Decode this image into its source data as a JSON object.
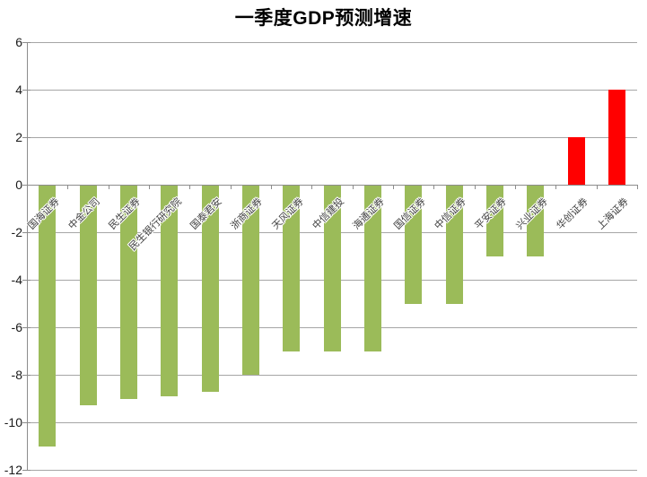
{
  "chart_data": {
    "type": "bar",
    "title": "一季度GDP预测增速",
    "categories": [
      "国海证券",
      "中金公司",
      "民生证券",
      "民生银行研究院",
      "国泰君安",
      "浙商证券",
      "天风证券",
      "中信建投",
      "海通证券",
      "国信证券",
      "中信证券",
      "平安证券",
      "兴业证券",
      "华创证券",
      "上海证券"
    ],
    "values": [
      -11,
      -9.3,
      -9,
      -8.9,
      -8.7,
      -8,
      -7,
      -7,
      -7,
      -5,
      -5,
      -3,
      -3,
      2,
      4
    ],
    "xlabel": "",
    "ylabel": "",
    "ylim": [
      -12,
      6
    ],
    "yticks": [
      6,
      4,
      2,
      0,
      -2,
      -4,
      -6,
      -8,
      -10,
      -12
    ],
    "grid": true,
    "legend": false,
    "colors": {
      "negative_bar": "#9BBB59",
      "positive_bar": "#FF0000",
      "gridline": "#A6A6A6",
      "axis": "#8C8C8C",
      "tick_label": "#1A1A1A",
      "category_label": "#3F3F3F",
      "title": "#000000",
      "background": "#FFFFFF"
    }
  }
}
